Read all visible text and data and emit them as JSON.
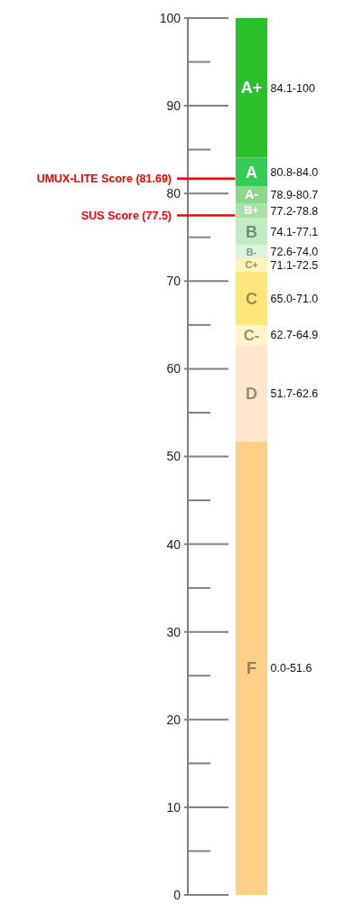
{
  "chart_data": {
    "type": "bar",
    "stacked": true,
    "categories": [
      null
    ],
    "series": [
      {
        "name": "F",
        "color": "#fdd08a",
        "values": [
          51.7
        ]
      },
      {
        "name": "D",
        "color": "#fde6cc",
        "values": [
          11.0
        ]
      },
      {
        "name": "C-",
        "color": "#fff5c8",
        "values": [
          2.3
        ]
      },
      {
        "name": "C",
        "color": "#ffe67a",
        "values": [
          6.1
        ]
      },
      {
        "name": "C+",
        "color": "#fff3b8",
        "values": [
          1.5
        ]
      },
      {
        "name": "B-",
        "color": "#def3de",
        "values": [
          1.5
        ]
      },
      {
        "name": "B",
        "color": "#c3ebc3",
        "values": [
          3.1
        ]
      },
      {
        "name": "B+",
        "color": "#a8e2a8",
        "values": [
          1.7
        ]
      },
      {
        "name": "A-",
        "color": "#8ad88a",
        "values": [
          1.9
        ]
      },
      {
        "name": "A",
        "color": "#33cc55",
        "values": [
          3.3
        ]
      },
      {
        "name": "A+",
        "color": "#2bbf2b",
        "values": [
          15.9
        ]
      }
    ],
    "annotations": [
      "0.0-51.6",
      "51.7-62.6",
      "62.7-64.9",
      "65.0-71.0",
      "71.1-72.5",
      "72.6-74.0",
      "74.1-77.1",
      "77.2-78.8",
      "78.9-80.7",
      "80.8-84.0",
      "84.1-100"
    ],
    "ylim": [
      0,
      100
    ],
    "yticks": [
      0,
      10,
      20,
      30,
      40,
      50,
      60,
      70,
      80,
      90,
      100
    ],
    "ref_lines": [
      {
        "axis": "y",
        "value": 81.69,
        "label": "UMUX-LITE Score (81.69)",
        "color": "#ff0000"
      },
      {
        "axis": "y",
        "value": 77.5,
        "label": "SUS Score (77.5)",
        "color": "#ff0000"
      }
    ],
    "grid": false,
    "legend": false,
    "tick_labels": "y"
  }
}
